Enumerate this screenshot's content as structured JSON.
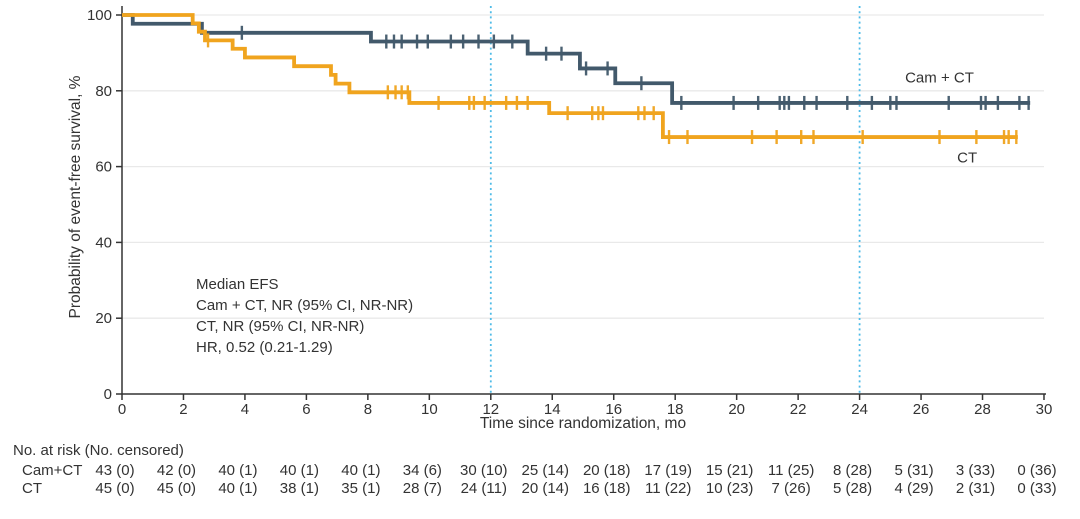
{
  "chart_data": {
    "type": "line",
    "subtype": "kaplan-meier-step",
    "xlabel": "Time since randomization, mo",
    "ylabel": "Probability of event-free survival, %",
    "xlim": [
      0,
      30
    ],
    "ylim": [
      0,
      100
    ],
    "xticks": [
      0,
      2,
      4,
      6,
      8,
      10,
      12,
      14,
      16,
      18,
      20,
      22,
      24,
      26,
      28,
      30
    ],
    "yticks": [
      0,
      20,
      40,
      60,
      80,
      100
    ],
    "grid": "horizontal",
    "reference_lines_x": [
      12,
      24
    ],
    "colors": {
      "cam_ct": "#42596B",
      "ct": "#F0A41E",
      "reference_line": "#4FBBE7",
      "grid": "#E9E9E9",
      "axis": "#333333"
    },
    "series": [
      {
        "name": "Cam + CT",
        "color": "#42596B",
        "label_pos": {
          "x": 26.6,
          "y": 83.4
        },
        "steps": [
          [
            0,
            100
          ],
          [
            0.35,
            97.7
          ],
          [
            2.6,
            95.3
          ],
          [
            8.1,
            93.0
          ],
          [
            13.2,
            89.8
          ],
          [
            14.9,
            85.9
          ],
          [
            16.05,
            82.0
          ],
          [
            17.9,
            76.8
          ]
        ],
        "end_x": 29.55,
        "censors": [
          [
            3.9,
            95.3
          ],
          [
            8.6,
            93.0
          ],
          [
            8.85,
            93.0
          ],
          [
            9.1,
            93.0
          ],
          [
            9.6,
            93.0
          ],
          [
            9.95,
            93.0
          ],
          [
            10.7,
            93.0
          ],
          [
            11.1,
            93.0
          ],
          [
            11.6,
            93.0
          ],
          [
            12.1,
            93.0
          ],
          [
            12.7,
            93.0
          ],
          [
            13.8,
            89.8
          ],
          [
            14.3,
            89.8
          ],
          [
            15.1,
            85.9
          ],
          [
            15.8,
            85.9
          ],
          [
            16.9,
            82.0
          ],
          [
            18.2,
            76.8
          ],
          [
            19.9,
            76.8
          ],
          [
            20.7,
            76.8
          ],
          [
            21.4,
            76.8
          ],
          [
            21.55,
            76.8
          ],
          [
            21.7,
            76.8
          ],
          [
            22.2,
            76.8
          ],
          [
            22.6,
            76.8
          ],
          [
            23.6,
            76.8
          ],
          [
            24.4,
            76.8
          ],
          [
            25.0,
            76.8
          ],
          [
            25.2,
            76.8
          ],
          [
            26.9,
            76.8
          ],
          [
            27.95,
            76.8
          ],
          [
            28.1,
            76.8
          ],
          [
            28.5,
            76.8
          ],
          [
            29.2,
            76.8
          ],
          [
            29.5,
            76.8
          ]
        ]
      },
      {
        "name": "CT",
        "color": "#F0A41E",
        "label_pos": {
          "x": 27.5,
          "y": 62.3
        },
        "steps": [
          [
            0,
            100
          ],
          [
            2.3,
            97.8
          ],
          [
            2.5,
            95.6
          ],
          [
            2.7,
            93.3
          ],
          [
            3.6,
            91.1
          ],
          [
            4.0,
            88.8
          ],
          [
            5.6,
            86.5
          ],
          [
            6.8,
            84.2
          ],
          [
            6.95,
            81.9
          ],
          [
            7.4,
            79.6
          ],
          [
            9.35,
            76.8
          ],
          [
            13.9,
            74.1
          ],
          [
            17.6,
            67.8
          ]
        ],
        "end_x": 29.15,
        "censors": [
          [
            2.8,
            93.3
          ],
          [
            8.65,
            79.6
          ],
          [
            8.9,
            79.6
          ],
          [
            9.1,
            79.6
          ],
          [
            9.3,
            79.6
          ],
          [
            10.3,
            76.8
          ],
          [
            11.3,
            76.8
          ],
          [
            11.45,
            76.8
          ],
          [
            11.8,
            76.8
          ],
          [
            12.5,
            76.8
          ],
          [
            12.85,
            76.8
          ],
          [
            13.2,
            76.8
          ],
          [
            14.5,
            74.1
          ],
          [
            15.3,
            74.1
          ],
          [
            15.5,
            74.1
          ],
          [
            15.65,
            74.1
          ],
          [
            16.8,
            74.1
          ],
          [
            17.0,
            74.1
          ],
          [
            17.3,
            74.1
          ],
          [
            17.8,
            67.8
          ],
          [
            18.4,
            67.8
          ],
          [
            20.5,
            67.8
          ],
          [
            21.3,
            67.8
          ],
          [
            22.1,
            67.8
          ],
          [
            22.5,
            67.8
          ],
          [
            24.1,
            67.8
          ],
          [
            26.6,
            67.8
          ],
          [
            27.8,
            67.8
          ],
          [
            28.7,
            67.8
          ],
          [
            28.85,
            67.8
          ],
          [
            29.1,
            67.8
          ]
        ]
      }
    ],
    "annotation": {
      "lines": [
        "Median EFS",
        "Cam + CT, NR (95% CI, NR-NR)",
        "CT, NR (95% CI, NR-NR)",
        "HR, 0.52 (0.21-1.29)"
      ]
    }
  },
  "risk_table": {
    "header": "No. at risk (No. censored)",
    "times": [
      0,
      2,
      4,
      6,
      8,
      10,
      12,
      14,
      16,
      18,
      20,
      22,
      24,
      26,
      28,
      30
    ],
    "rows": [
      {
        "label": "Cam+CT",
        "values": [
          "43 (0)",
          "42 (0)",
          "40 (1)",
          "40 (1)",
          "40 (1)",
          "34 (6)",
          "30 (10)",
          "25 (14)",
          "20 (18)",
          "17 (19)",
          "15 (21)",
          "11 (25)",
          "8 (28)",
          "5 (31)",
          "3 (33)",
          "0 (36)"
        ]
      },
      {
        "label": "CT",
        "values": [
          "45 (0)",
          "45 (0)",
          "40 (1)",
          "38 (1)",
          "35 (1)",
          "28 (7)",
          "24 (11)",
          "20 (14)",
          "16 (18)",
          "11 (22)",
          "10 (23)",
          "7 (26)",
          "5 (28)",
          "4 (29)",
          "2 (31)",
          "0 (33)"
        ]
      }
    ]
  }
}
